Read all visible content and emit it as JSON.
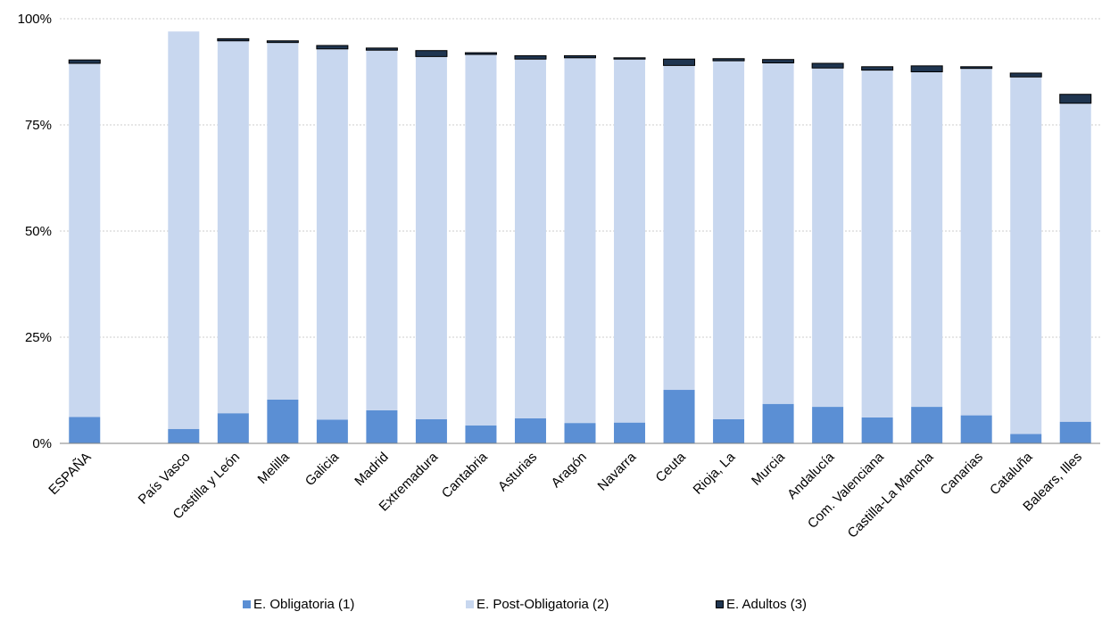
{
  "chart_data": {
    "type": "bar",
    "stacked": true,
    "y_axis_format": "percent",
    "ylim": [
      0,
      100
    ],
    "yticks": [
      0,
      25,
      50,
      75,
      100
    ],
    "ytick_labels": [
      "0%",
      "25%",
      "50%",
      "75%",
      "100%"
    ],
    "grid": true,
    "legend_position": "bottom",
    "categories": [
      "ESPAÑA",
      "",
      "País Vasco",
      "Castilla y León",
      "Melilla",
      "Galicia",
      "Madrid",
      "Extremadura",
      "Cantabria",
      "Asturias",
      "Aragón",
      "Navarra",
      "Ceuta",
      "Rioja, La",
      "Murcia",
      "Andalucía",
      "Com. Valenciana",
      "Castilla-La Mancha",
      "Canarias",
      "Cataluña",
      "Balears, Illes"
    ],
    "series": [
      {
        "name": "E. Obligatoria (1)",
        "color": "#5b8fd4",
        "values": [
          6.2,
          null,
          3.4,
          7.1,
          10.3,
          5.6,
          7.8,
          5.7,
          4.2,
          5.9,
          4.8,
          4.9,
          12.6,
          5.7,
          9.3,
          8.6,
          6.1,
          8.6,
          6.6,
          2.2,
          5.1
        ]
      },
      {
        "name": "E. Post-Obligatoria (2)",
        "color": "#c8d7ef",
        "values": [
          83.3,
          null,
          93.6,
          87.7,
          84.1,
          87.3,
          84.8,
          85.4,
          87.4,
          84.6,
          86.0,
          85.6,
          76.4,
          84.4,
          80.3,
          79.8,
          81.8,
          78.9,
          81.7,
          84.1,
          75.0
        ]
      },
      {
        "name": "E. Adultos (3)",
        "color": "#1f3550",
        "values": [
          0.8,
          null,
          0.0,
          0.5,
          0.4,
          0.8,
          0.5,
          1.4,
          0.4,
          0.8,
          0.5,
          0.3,
          1.5,
          0.5,
          0.8,
          1.1,
          0.8,
          1.4,
          0.4,
          0.9,
          2.1
        ]
      }
    ]
  }
}
